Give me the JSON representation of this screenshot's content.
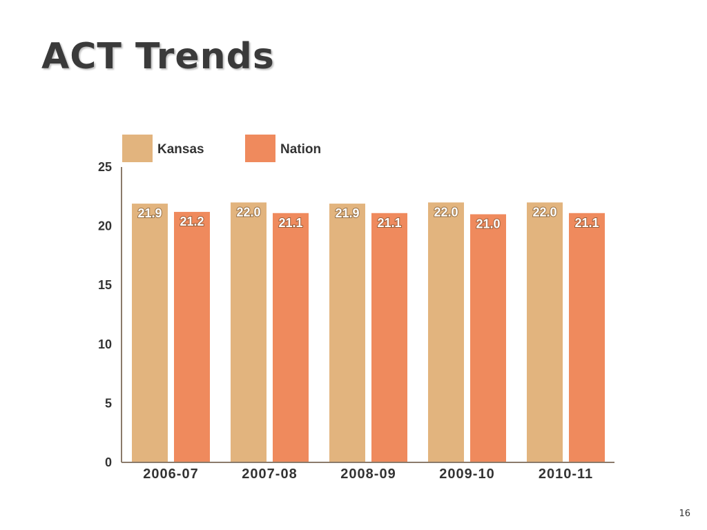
{
  "slide": {
    "title": "ACT Trends",
    "page_number": "16"
  },
  "colors": {
    "kansas": "#e2b47e",
    "nation": "#ef8a5d",
    "axis": "#8a7a6a",
    "text": "#333333"
  },
  "chart_data": {
    "type": "bar",
    "title": "",
    "xlabel": "",
    "ylabel": "",
    "categories": [
      "2006-07",
      "2007-08",
      "2008-09",
      "2009-10",
      "2010-11"
    ],
    "series": [
      {
        "name": "Kansas",
        "values": [
          21.9,
          22.0,
          21.9,
          22.0,
          22.0
        ],
        "labels": [
          "21.9",
          "22.0",
          "21.9",
          "22.0",
          "22.0"
        ]
      },
      {
        "name": "Nation",
        "values": [
          21.2,
          21.1,
          21.1,
          21.0,
          21.1
        ],
        "labels": [
          "21.2",
          "21.1",
          "21.1",
          "21.0",
          "21.1"
        ]
      }
    ],
    "ylim": [
      0,
      25
    ],
    "yticks": [
      0,
      5,
      10,
      15,
      20,
      25
    ],
    "legend": "top-left",
    "grid": false
  }
}
